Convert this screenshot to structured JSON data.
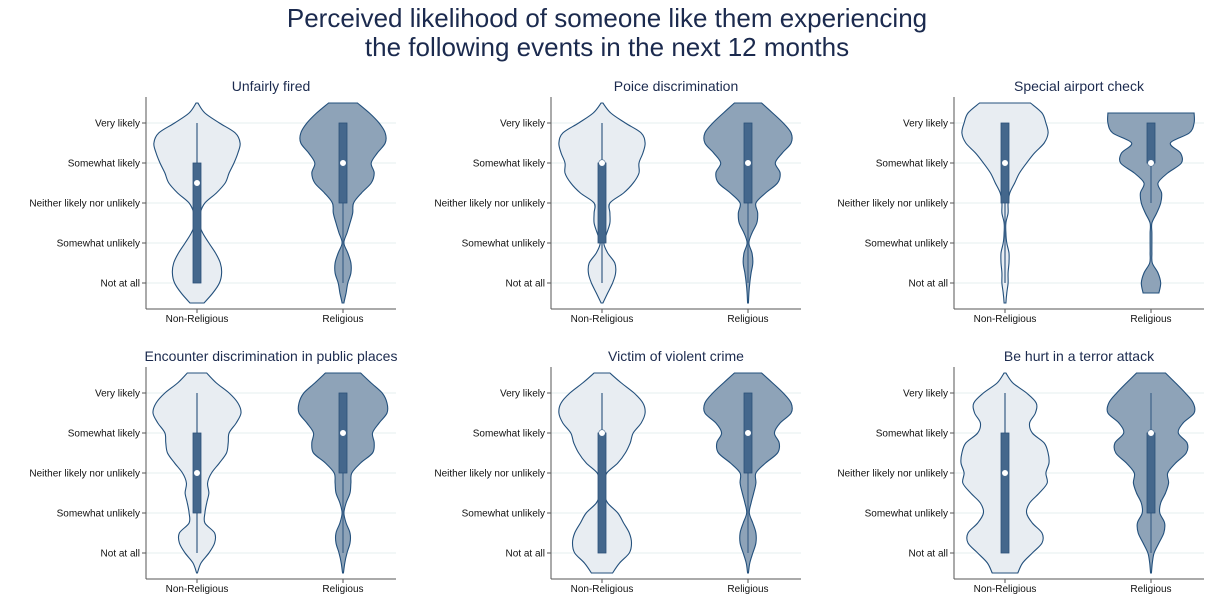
{
  "title_lines": [
    "Perceived likelihood of someone like them experiencing",
    "the following events in the next 12 months"
  ],
  "colors": {
    "non_religious_fill": "#e8edf2",
    "religious_fill": "#8ea3b8",
    "outline": "#23507c",
    "box": "#44678c",
    "grid": "#eaf2f2",
    "title": "#1b2a4e"
  },
  "chart_data": [
    {
      "type": "violin",
      "title": "Unfairly fired",
      "categories": [
        "Non-Religious",
        "Religious"
      ],
      "yticks": [
        {
          "value": 5,
          "label": "Very likely"
        },
        {
          "value": 4,
          "label": "Somewhat likely"
        },
        {
          "value": 3,
          "label": "Neither likely nor unlikely"
        },
        {
          "value": 2,
          "label": "Somewhat unlikely"
        },
        {
          "value": 1,
          "label": "Not at all"
        }
      ],
      "series": [
        {
          "name": "Non-Religious",
          "range": [
            0.5,
            5.5
          ],
          "density": [
            0.16,
            0.36,
            0.51,
            0.56,
            0.53,
            0.42,
            0.27,
            0.13,
            0.04,
            0.07,
            0.18,
            0.44,
            0.64,
            0.73,
            0.84,
            0.93,
            0.98,
            0.87,
            0.51,
            0.18,
            0.02
          ],
          "box": {
            "whisker_low": 1,
            "q1": 1,
            "median": 3.5,
            "q3": 4,
            "whisker_high": 5
          }
        },
        {
          "name": "Religious",
          "range": [
            0.5,
            5.5
          ],
          "density": [
            0.02,
            0.07,
            0.11,
            0.18,
            0.18,
            0.11,
            0.02,
            0.09,
            0.16,
            0.22,
            0.24,
            0.42,
            0.64,
            0.71,
            0.64,
            0.78,
            0.96,
            0.96,
            0.82,
            0.6,
            0.33
          ],
          "box": {
            "whisker_low": 1,
            "q1": 3,
            "median": 4,
            "q3": 5,
            "whisker_high": 5
          }
        }
      ]
    },
    {
      "type": "violin",
      "title": "Poice discrimination",
      "categories": [
        "Non-Religious",
        "Religious"
      ],
      "yticks": [
        {
          "value": 5,
          "label": "Very likely"
        },
        {
          "value": 4,
          "label": "Somewhat likely"
        },
        {
          "value": 3,
          "label": "Neither likely nor unlikely"
        },
        {
          "value": 2,
          "label": "Somewhat unlikely"
        },
        {
          "value": 1,
          "label": "Not at all"
        }
      ],
      "series": [
        {
          "name": "Non-Religious",
          "range": [
            0.5,
            5.5
          ],
          "density": [
            0.02,
            0.13,
            0.24,
            0.31,
            0.29,
            0.13,
            0.04,
            0.11,
            0.18,
            0.18,
            0.18,
            0.49,
            0.71,
            0.84,
            0.84,
            0.93,
            0.98,
            0.89,
            0.53,
            0.2,
            0.02
          ],
          "box": {
            "whisker_low": 1,
            "q1": 2,
            "median": 4,
            "q3": 4,
            "whisker_high": 5
          }
        },
        {
          "name": "Religious",
          "range": [
            0.5,
            5.5
          ],
          "density": [
            0.01,
            0.02,
            0.04,
            0.07,
            0.11,
            0.09,
            0.02,
            0.09,
            0.2,
            0.22,
            0.18,
            0.4,
            0.67,
            0.73,
            0.62,
            0.78,
            0.98,
            0.98,
            0.8,
            0.56,
            0.31
          ],
          "box": {
            "whisker_low": 1,
            "q1": 3,
            "median": 4,
            "q3": 5,
            "whisker_high": 5
          }
        }
      ]
    },
    {
      "type": "violin",
      "title": "Special airport check",
      "categories": [
        "Non-Religious",
        "Religious"
      ],
      "yticks": [
        {
          "value": 5,
          "label": "Very likely"
        },
        {
          "value": 4,
          "label": "Somewhat likely"
        },
        {
          "value": 3,
          "label": "Neither likely nor unlikely"
        },
        {
          "value": 2,
          "label": "Somewhat unlikely"
        },
        {
          "value": 1,
          "label": "Not at all"
        }
      ],
      "series": [
        {
          "name": "Non-Religious",
          "range": [
            0.5,
            5.5
          ],
          "density": [
            0.02,
            0.04,
            0.07,
            0.07,
            0.09,
            0.09,
            0.04,
            0.02,
            0.02,
            0.07,
            0.07,
            0.11,
            0.22,
            0.33,
            0.49,
            0.67,
            0.89,
            0.98,
            0.93,
            0.84,
            0.58
          ],
          "box": {
            "whisker_low": 1,
            "q1": 3,
            "median": 4,
            "q3": 5,
            "whisker_high": 5
          }
        },
        {
          "name": "Religious",
          "range": [
            0.75,
            5.25
          ],
          "density": [
            0.18,
            0.22,
            0.16,
            0.03,
            0.02,
            0.02,
            0.02,
            0.02,
            0.13,
            0.22,
            0.24,
            0.16,
            0.38,
            0.69,
            0.67,
            0.44,
            0.87,
            0.98,
            0.98
          ],
          "box": {
            "whisker_low": 3,
            "q1": 4,
            "median": 4,
            "q3": 5,
            "whisker_high": 5
          }
        }
      ]
    },
    {
      "type": "violin",
      "title": "Encounter discrimination in public places",
      "categories": [
        "Non-Religious",
        "Religious"
      ],
      "yticks": [
        {
          "value": 5,
          "label": "Very likely"
        },
        {
          "value": 4,
          "label": "Somewhat likely"
        },
        {
          "value": 3,
          "label": "Neither likely nor unlikely"
        },
        {
          "value": 2,
          "label": "Somewhat unlikely"
        },
        {
          "value": 1,
          "label": "Not at all"
        }
      ],
      "series": [
        {
          "name": "Non-Religious",
          "range": [
            0.5,
            5.5
          ],
          "density": [
            0.01,
            0.09,
            0.27,
            0.4,
            0.4,
            0.18,
            0.18,
            0.22,
            0.27,
            0.24,
            0.33,
            0.51,
            0.67,
            0.71,
            0.73,
            0.89,
            1,
            0.93,
            0.73,
            0.44,
            0.22
          ],
          "box": {
            "whisker_low": 1,
            "q1": 2,
            "median": 3,
            "q3": 4,
            "whisker_high": 5
          }
        },
        {
          "name": "Religious",
          "range": [
            0.5,
            5.5
          ],
          "density": [
            0.01,
            0.04,
            0.09,
            0.16,
            0.16,
            0.07,
            0.02,
            0.07,
            0.16,
            0.18,
            0.2,
            0.4,
            0.67,
            0.71,
            0.67,
            0.82,
            1,
            1,
            0.89,
            0.64,
            0.4
          ],
          "box": {
            "whisker_low": 1,
            "q1": 3,
            "median": 4,
            "q3": 5,
            "whisker_high": 5
          }
        }
      ]
    },
    {
      "type": "violin",
      "title": "Victim of violent crime",
      "categories": [
        "Non-Religious",
        "Religious"
      ],
      "yticks": [
        {
          "value": 5,
          "label": "Very likely"
        },
        {
          "value": 4,
          "label": "Somewhat likely"
        },
        {
          "value": 3,
          "label": "Neither likely nor unlikely"
        },
        {
          "value": 2,
          "label": "Somewhat unlikely"
        },
        {
          "value": 1,
          "label": "Not at all"
        }
      ],
      "series": [
        {
          "name": "Non-Religious",
          "range": [
            0.5,
            5.5
          ],
          "density": [
            0.24,
            0.4,
            0.62,
            0.67,
            0.62,
            0.49,
            0.36,
            0.13,
            0.04,
            0.04,
            0.11,
            0.36,
            0.53,
            0.64,
            0.71,
            0.89,
            0.98,
            0.93,
            0.73,
            0.44,
            0.18
          ],
          "box": {
            "whisker_low": 1,
            "q1": 1,
            "median": 4,
            "q3": 4,
            "whisker_high": 5
          }
        },
        {
          "name": "Religious",
          "range": [
            0.5,
            5.5
          ],
          "density": [
            0.01,
            0.04,
            0.11,
            0.18,
            0.18,
            0.11,
            0.03,
            0.07,
            0.13,
            0.18,
            0.18,
            0.4,
            0.67,
            0.71,
            0.6,
            0.73,
            0.98,
            0.98,
            0.8,
            0.56,
            0.31
          ],
          "box": {
            "whisker_low": 1,
            "q1": 3,
            "median": 4,
            "q3": 5,
            "whisker_high": 5
          }
        }
      ]
    },
    {
      "type": "violin",
      "title": "Be hurt in a terror attack",
      "categories": [
        "Non-Religious",
        "Religious"
      ],
      "yticks": [
        {
          "value": 5,
          "label": "Very likely"
        },
        {
          "value": 4,
          "label": "Somewhat likely"
        },
        {
          "value": 3,
          "label": "Neither likely nor unlikely"
        },
        {
          "value": 2,
          "label": "Somewhat unlikely"
        },
        {
          "value": 1,
          "label": "Not at all"
        }
      ],
      "series": [
        {
          "name": "Non-Religious",
          "range": [
            0.5,
            5.5
          ],
          "density": [
            0.29,
            0.4,
            0.62,
            0.84,
            0.84,
            0.62,
            0.49,
            0.56,
            0.78,
            0.96,
            0.93,
            1,
            0.98,
            0.89,
            0.62,
            0.56,
            0.69,
            0.71,
            0.49,
            0.18,
            0.02
          ],
          "box": {
            "whisker_low": 1,
            "q1": 1,
            "median": 3,
            "q3": 4,
            "whisker_high": 5
          }
        },
        {
          "name": "Religious",
          "range": [
            0.5,
            5.5
          ],
          "density": [
            0.01,
            0.03,
            0.07,
            0.18,
            0.29,
            0.31,
            0.2,
            0.22,
            0.33,
            0.4,
            0.38,
            0.56,
            0.8,
            0.82,
            0.62,
            0.73,
            0.98,
            0.96,
            0.78,
            0.56,
            0.33
          ],
          "box": {
            "whisker_low": 1,
            "q1": 2,
            "median": 4,
            "q3": 4,
            "whisker_high": 5
          }
        }
      ]
    }
  ]
}
